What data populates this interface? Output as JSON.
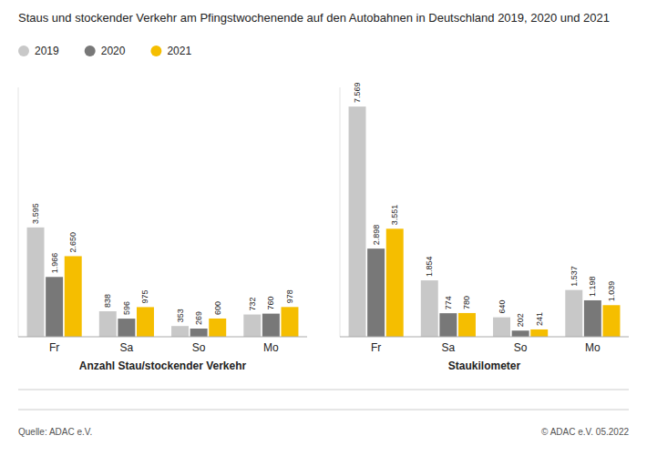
{
  "chart_data": [
    {
      "type": "bar",
      "title": "Staus und stockender Verkehr am Pfingstwochenende auf den Autobahnen in Deutschland 2019, 2020 und 2021",
      "xlabel": "Anzahl Stau/stockender Verkehr",
      "categories": [
        "Fr",
        "Sa",
        "So",
        "Mo"
      ],
      "series": [
        {
          "name": "2019",
          "color": "#c8c8c8",
          "values": [
            3595,
            838,
            353,
            732
          ],
          "value_labels": [
            "3.595",
            "838",
            "353",
            "732"
          ]
        },
        {
          "name": "2020",
          "color": "#787878",
          "values": [
            1966,
            596,
            269,
            760
          ],
          "value_labels": [
            "1.966",
            "596",
            "269",
            "760"
          ]
        },
        {
          "name": "2021",
          "color": "#f5be00",
          "values": [
            2650,
            975,
            600,
            978
          ],
          "value_labels": [
            "2.650",
            "975",
            "600",
            "978"
          ]
        }
      ],
      "ylim": [
        0,
        8200
      ],
      "data_labels": true,
      "tick_labels": "x",
      "grid": false,
      "legend": "top-left",
      "annotations": [
        "Quelle: ADAC e.V.",
        "© ADAC e.V. 05.2022"
      ]
    },
    {
      "type": "bar",
      "xlabel": "Staukilometer",
      "categories": [
        "Fr",
        "Sa",
        "So",
        "Mo"
      ],
      "series": [
        {
          "name": "2019",
          "color": "#c8c8c8",
          "values": [
            7569,
            1854,
            640,
            1537
          ],
          "value_labels": [
            "7.569",
            "1.854",
            "640",
            "1.537"
          ]
        },
        {
          "name": "2020",
          "color": "#787878",
          "values": [
            2898,
            774,
            202,
            1198
          ],
          "value_labels": [
            "2.898",
            "774",
            "202",
            "1.198"
          ]
        },
        {
          "name": "2021",
          "color": "#f5be00",
          "values": [
            3551,
            780,
            241,
            1039
          ],
          "value_labels": [
            "3.551",
            "780",
            "241",
            "1.039"
          ]
        }
      ],
      "ylim": [
        0,
        8200
      ],
      "data_labels": true,
      "tick_labels": "x",
      "grid": false
    }
  ]
}
